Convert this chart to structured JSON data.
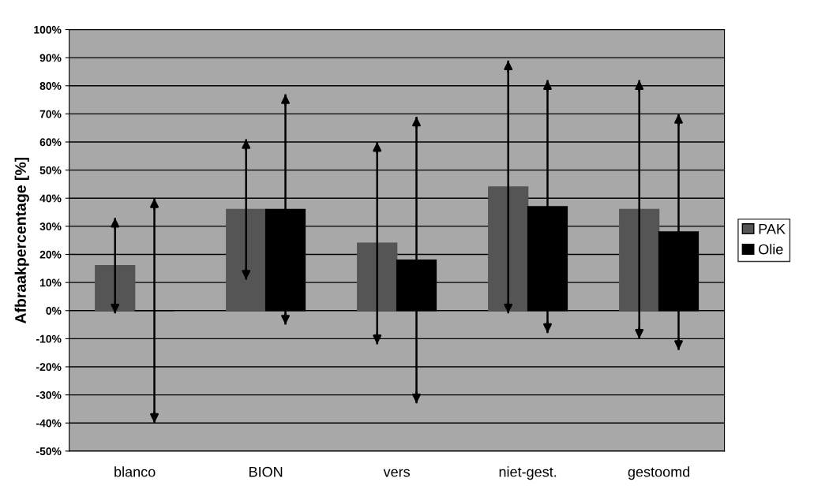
{
  "chart_data": {
    "type": "bar",
    "ylabel": "Afbraakpercentage [%]",
    "categories": [
      "blanco",
      "BION",
      "vers",
      "niet-gest.",
      "gestoomd"
    ],
    "series": [
      {
        "name": "PAK",
        "color": "#555555",
        "values": [
          16,
          36,
          24,
          44,
          36
        ],
        "errors": [
          17,
          25,
          36,
          45,
          46
        ]
      },
      {
        "name": "Olie",
        "color": "#000000",
        "values": [
          0,
          36,
          18,
          37,
          28
        ],
        "errors": [
          40,
          41,
          51,
          45,
          42
        ]
      }
    ],
    "ylim": [
      -50,
      100
    ],
    "yticks": [
      {
        "value": -50,
        "label": "-50%"
      },
      {
        "value": -40,
        "label": "-40%"
      },
      {
        "value": -30,
        "label": "-30%"
      },
      {
        "value": -20,
        "label": "-20%"
      },
      {
        "value": -10,
        "label": "-10%"
      },
      {
        "value": 0,
        "label": "0%"
      },
      {
        "value": 10,
        "label": "10%"
      },
      {
        "value": 20,
        "label": "20%"
      },
      {
        "value": 30,
        "label": "30%"
      },
      {
        "value": 40,
        "label": "40%"
      },
      {
        "value": 50,
        "label": "50%"
      },
      {
        "value": 60,
        "label": "60%"
      },
      {
        "value": 70,
        "label": "70%"
      },
      {
        "value": 80,
        "label": "80%"
      },
      {
        "value": 90,
        "label": "90%"
      },
      {
        "value": 100,
        "label": "100%"
      }
    ],
    "grid": "y",
    "legend": "right"
  }
}
